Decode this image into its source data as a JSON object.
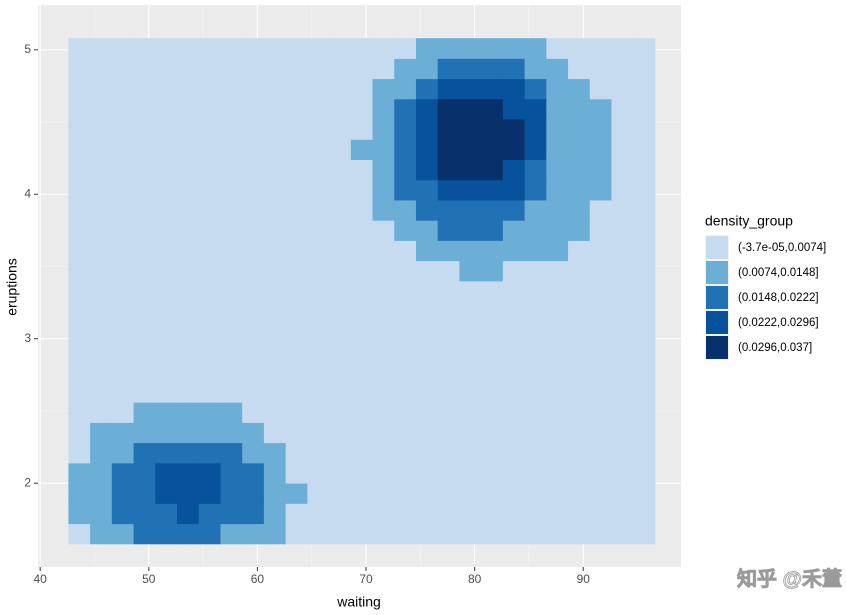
{
  "chart_data": {
    "type": "raster",
    "x_label": "waiting",
    "y_label": "eruptions",
    "xlim": [
      39.8,
      99.0
    ],
    "ylim": [
      1.42,
      5.31
    ],
    "xticks": [
      40,
      50,
      60,
      70,
      80,
      90
    ],
    "yticks": [
      2,
      3,
      4,
      5
    ],
    "grid": true,
    "legend_title": "density_group",
    "legend_position": "right",
    "levels": [
      "(-3.7e-05,0.0074]",
      "(0.0074,0.0148]",
      "(0.0148,0.0222]",
      "(0.0222,0.0296]",
      "(0.0296,0.037]"
    ],
    "colors": [
      "#c6dbef",
      "#6baed6",
      "#2171b5",
      "#08519c",
      "#08306b"
    ],
    "x": [
      43.6,
      45.6,
      47.6,
      49.6,
      51.6,
      53.6,
      55.6,
      57.6,
      59.6,
      61.6,
      63.6,
      65.6,
      67.6,
      69.6,
      71.6,
      73.6,
      75.6,
      77.6,
      79.6,
      81.6,
      83.6,
      85.6,
      87.6,
      89.6,
      91.6,
      93.6,
      95.6
    ],
    "y": [
      1.65,
      1.79,
      1.93,
      2.07,
      2.21,
      2.35,
      2.49,
      2.63,
      2.77,
      2.91,
      3.05,
      3.19,
      3.33,
      3.47,
      3.61,
      3.75,
      3.89,
      4.03,
      4.17,
      4.31,
      4.45,
      4.59,
      4.73,
      4.87,
      5.01
    ],
    "values": [
      [
        0,
        1,
        1,
        2,
        2,
        2,
        2,
        1,
        1,
        1,
        0,
        0,
        0,
        0,
        0,
        0,
        0,
        0,
        0,
        0,
        0,
        0,
        0,
        0,
        0,
        0,
        0
      ],
      [
        1,
        1,
        2,
        2,
        2,
        3,
        2,
        2,
        2,
        1,
        0,
        0,
        0,
        0,
        0,
        0,
        0,
        0,
        0,
        0,
        0,
        0,
        0,
        0,
        0,
        0,
        0
      ],
      [
        1,
        1,
        2,
        2,
        3,
        3,
        3,
        2,
        2,
        1,
        1,
        0,
        0,
        0,
        0,
        0,
        0,
        0,
        0,
        0,
        0,
        0,
        0,
        0,
        0,
        0,
        0
      ],
      [
        1,
        1,
        2,
        2,
        3,
        3,
        3,
        2,
        2,
        1,
        0,
        0,
        0,
        0,
        0,
        0,
        0,
        0,
        0,
        0,
        0,
        0,
        0,
        0,
        0,
        0,
        0
      ],
      [
        0,
        1,
        1,
        2,
        2,
        2,
        2,
        2,
        1,
        1,
        0,
        0,
        0,
        0,
        0,
        0,
        0,
        0,
        0,
        0,
        0,
        0,
        0,
        0,
        0,
        0,
        0
      ],
      [
        0,
        1,
        1,
        1,
        1,
        1,
        1,
        1,
        1,
        0,
        0,
        0,
        0,
        0,
        0,
        0,
        0,
        0,
        0,
        0,
        0,
        0,
        0,
        0,
        0,
        0,
        0
      ],
      [
        0,
        0,
        0,
        1,
        1,
        1,
        1,
        1,
        0,
        0,
        0,
        0,
        0,
        0,
        0,
        0,
        0,
        0,
        0,
        0,
        0,
        0,
        0,
        0,
        0,
        0,
        0
      ],
      [
        0,
        0,
        0,
        0,
        0,
        0,
        0,
        0,
        0,
        0,
        0,
        0,
        0,
        0,
        0,
        0,
        0,
        0,
        0,
        0,
        0,
        0,
        0,
        0,
        0,
        0,
        0
      ],
      [
        0,
        0,
        0,
        0,
        0,
        0,
        0,
        0,
        0,
        0,
        0,
        0,
        0,
        0,
        0,
        0,
        0,
        0,
        0,
        0,
        0,
        0,
        0,
        0,
        0,
        0,
        0
      ],
      [
        0,
        0,
        0,
        0,
        0,
        0,
        0,
        0,
        0,
        0,
        0,
        0,
        0,
        0,
        0,
        0,
        0,
        0,
        0,
        0,
        0,
        0,
        0,
        0,
        0,
        0,
        0
      ],
      [
        0,
        0,
        0,
        0,
        0,
        0,
        0,
        0,
        0,
        0,
        0,
        0,
        0,
        0,
        0,
        0,
        0,
        0,
        0,
        0,
        0,
        0,
        0,
        0,
        0,
        0,
        0
      ],
      [
        0,
        0,
        0,
        0,
        0,
        0,
        0,
        0,
        0,
        0,
        0,
        0,
        0,
        0,
        0,
        0,
        0,
        0,
        0,
        0,
        0,
        0,
        0,
        0,
        0,
        0,
        0
      ],
      [
        0,
        0,
        0,
        0,
        0,
        0,
        0,
        0,
        0,
        0,
        0,
        0,
        0,
        0,
        0,
        0,
        0,
        0,
        0,
        0,
        0,
        0,
        0,
        0,
        0,
        0,
        0
      ],
      [
        0,
        0,
        0,
        0,
        0,
        0,
        0,
        0,
        0,
        0,
        0,
        0,
        0,
        0,
        0,
        0,
        0,
        0,
        1,
        1,
        0,
        0,
        0,
        0,
        0,
        0,
        0
      ],
      [
        0,
        0,
        0,
        0,
        0,
        0,
        0,
        0,
        0,
        0,
        0,
        0,
        0,
        0,
        0,
        0,
        1,
        1,
        1,
        1,
        1,
        1,
        1,
        0,
        0,
        0,
        0
      ],
      [
        0,
        0,
        0,
        0,
        0,
        0,
        0,
        0,
        0,
        0,
        0,
        0,
        0,
        0,
        0,
        1,
        1,
        2,
        2,
        2,
        1,
        1,
        1,
        1,
        0,
        0,
        0
      ],
      [
        0,
        0,
        0,
        0,
        0,
        0,
        0,
        0,
        0,
        0,
        0,
        0,
        0,
        0,
        1,
        1,
        2,
        2,
        2,
        2,
        2,
        1,
        1,
        1,
        0,
        0,
        0
      ],
      [
        0,
        0,
        0,
        0,
        0,
        0,
        0,
        0,
        0,
        0,
        0,
        0,
        0,
        0,
        1,
        2,
        2,
        3,
        3,
        3,
        3,
        2,
        1,
        1,
        1,
        0,
        0
      ],
      [
        0,
        0,
        0,
        0,
        0,
        0,
        0,
        0,
        0,
        0,
        0,
        0,
        0,
        0,
        1,
        2,
        3,
        4,
        4,
        4,
        3,
        2,
        1,
        1,
        1,
        0,
        0
      ],
      [
        0,
        0,
        0,
        0,
        0,
        0,
        0,
        0,
        0,
        0,
        0,
        0,
        0,
        1,
        1,
        2,
        3,
        4,
        4,
        4,
        4,
        3,
        1,
        1,
        1,
        0,
        0
      ],
      [
        0,
        0,
        0,
        0,
        0,
        0,
        0,
        0,
        0,
        0,
        0,
        0,
        0,
        0,
        1,
        2,
        3,
        4,
        4,
        4,
        4,
        3,
        1,
        1,
        1,
        0,
        0
      ],
      [
        0,
        0,
        0,
        0,
        0,
        0,
        0,
        0,
        0,
        0,
        0,
        0,
        0,
        0,
        1,
        2,
        3,
        4,
        4,
        4,
        3,
        3,
        1,
        1,
        1,
        0,
        0
      ],
      [
        0,
        0,
        0,
        0,
        0,
        0,
        0,
        0,
        0,
        0,
        0,
        0,
        0,
        0,
        1,
        1,
        2,
        3,
        3,
        3,
        3,
        2,
        1,
        1,
        0,
        0,
        0
      ],
      [
        0,
        0,
        0,
        0,
        0,
        0,
        0,
        0,
        0,
        0,
        0,
        0,
        0,
        0,
        0,
        1,
        1,
        2,
        2,
        2,
        2,
        1,
        1,
        0,
        0,
        0,
        0
      ],
      [
        0,
        0,
        0,
        0,
        0,
        0,
        0,
        0,
        0,
        0,
        0,
        0,
        0,
        0,
        0,
        0,
        1,
        1,
        1,
        1,
        1,
        1,
        0,
        0,
        0,
        0,
        0
      ]
    ]
  },
  "watermark": "知乎 @禾董"
}
